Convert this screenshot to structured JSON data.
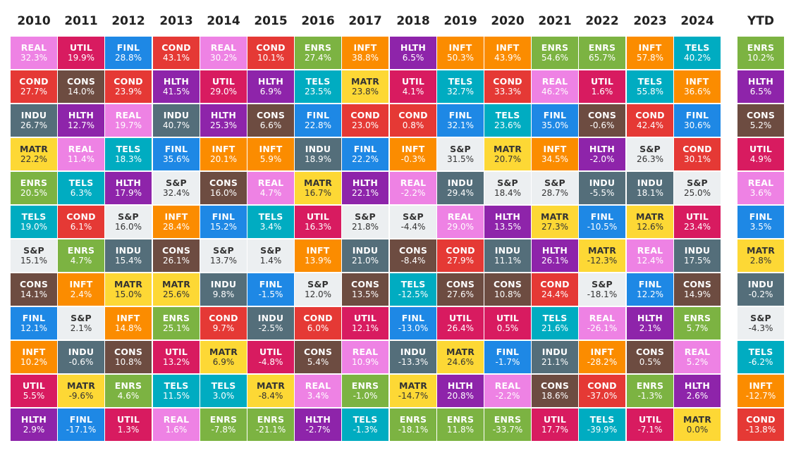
{
  "chart_data": {
    "type": "table",
    "columns": [
      "2010",
      "2011",
      "2012",
      "2013",
      "2014",
      "2015",
      "2016",
      "2017",
      "2018",
      "2019",
      "2020",
      "2021",
      "2022",
      "2023",
      "2024",
      "YTD"
    ],
    "colors": {
      "REAL": "#ee82e4",
      "UTIL": "#d81b60",
      "FINL": "#1e88e5",
      "COND": "#e53935",
      "ENRS": "#7cb342",
      "INFT": "#fb8c00",
      "HLTH": "#8e24aa",
      "TELS": "#00acc1",
      "CONS": "#6d4c41",
      "MATR": "#fdd835",
      "INDU": "#546e7a",
      "S&P": "#eceff1"
    },
    "data": [
      [
        [
          "REAL",
          "32.3%"
        ],
        [
          "COND",
          "27.7%"
        ],
        [
          "INDU",
          "26.7%"
        ],
        [
          "MATR",
          "22.2%"
        ],
        [
          "ENRS",
          "20.5%"
        ],
        [
          "TELS",
          "19.0%"
        ],
        [
          "S&P",
          "15.1%"
        ],
        [
          "CONS",
          "14.1%"
        ],
        [
          "FINL",
          "12.1%"
        ],
        [
          "INFT",
          "10.2%"
        ],
        [
          "UTIL",
          "5.5%"
        ],
        [
          "HLTH",
          "2.9%"
        ]
      ],
      [
        [
          "UTIL",
          "19.9%"
        ],
        [
          "CONS",
          "14.0%"
        ],
        [
          "HLTH",
          "12.7%"
        ],
        [
          "REAL",
          "11.4%"
        ],
        [
          "TELS",
          "6.3%"
        ],
        [
          "COND",
          "6.1%"
        ],
        [
          "ENRS",
          "4.7%"
        ],
        [
          "INFT",
          "2.4%"
        ],
        [
          "S&P",
          "2.1%"
        ],
        [
          "INDU",
          "-0.6%"
        ],
        [
          "MATR",
          "-9.6%"
        ],
        [
          "FINL",
          "-17.1%"
        ]
      ],
      [
        [
          "FINL",
          "28.8%"
        ],
        [
          "COND",
          "23.9%"
        ],
        [
          "REAL",
          "19.7%"
        ],
        [
          "TELS",
          "18.3%"
        ],
        [
          "HLTH",
          "17.9%"
        ],
        [
          "S&P",
          "16.0%"
        ],
        [
          "INDU",
          "15.4%"
        ],
        [
          "MATR",
          "15.0%"
        ],
        [
          "INFT",
          "14.8%"
        ],
        [
          "CONS",
          "10.8%"
        ],
        [
          "ENRS",
          "4.6%"
        ],
        [
          "UTIL",
          "1.3%"
        ]
      ],
      [
        [
          "COND",
          "43.1%"
        ],
        [
          "HLTH",
          "41.5%"
        ],
        [
          "INDU",
          "40.7%"
        ],
        [
          "FINL",
          "35.6%"
        ],
        [
          "S&P",
          "32.4%"
        ],
        [
          "INFT",
          "28.4%"
        ],
        [
          "CONS",
          "26.1%"
        ],
        [
          "MATR",
          "25.6%"
        ],
        [
          "ENRS",
          "25.1%"
        ],
        [
          "UTIL",
          "13.2%"
        ],
        [
          "TELS",
          "11.5%"
        ],
        [
          "REAL",
          "1.6%"
        ]
      ],
      [
        [
          "REAL",
          "30.2%"
        ],
        [
          "UTIL",
          "29.0%"
        ],
        [
          "HLTH",
          "25.3%"
        ],
        [
          "INFT",
          "20.1%"
        ],
        [
          "CONS",
          "16.0%"
        ],
        [
          "FINL",
          "15.2%"
        ],
        [
          "S&P",
          "13.7%"
        ],
        [
          "INDU",
          "9.8%"
        ],
        [
          "COND",
          "9.7%"
        ],
        [
          "MATR",
          "6.9%"
        ],
        [
          "TELS",
          "3.0%"
        ],
        [
          "ENRS",
          "-7.8%"
        ]
      ],
      [
        [
          "COND",
          "10.1%"
        ],
        [
          "HLTH",
          "6.9%"
        ],
        [
          "CONS",
          "6.6%"
        ],
        [
          "INFT",
          "5.9%"
        ],
        [
          "REAL",
          "4.7%"
        ],
        [
          "TELS",
          "3.4%"
        ],
        [
          "S&P",
          "1.4%"
        ],
        [
          "FINL",
          "-1.5%"
        ],
        [
          "INDU",
          "-2.5%"
        ],
        [
          "UTIL",
          "-4.8%"
        ],
        [
          "MATR",
          "-8.4%"
        ],
        [
          "ENRS",
          "-21.1%"
        ]
      ],
      [
        [
          "ENRS",
          "27.4%"
        ],
        [
          "TELS",
          "23.5%"
        ],
        [
          "FINL",
          "22.8%"
        ],
        [
          "INDU",
          "18.9%"
        ],
        [
          "MATR",
          "16.7%"
        ],
        [
          "UTIL",
          "16.3%"
        ],
        [
          "INFT",
          "13.9%"
        ],
        [
          "S&P",
          "12.0%"
        ],
        [
          "COND",
          "6.0%"
        ],
        [
          "CONS",
          "5.4%"
        ],
        [
          "REAL",
          "3.4%"
        ],
        [
          "HLTH",
          "-2.7%"
        ]
      ],
      [
        [
          "INFT",
          "38.8%"
        ],
        [
          "MATR",
          "23.8%"
        ],
        [
          "COND",
          "23.0%"
        ],
        [
          "FINL",
          "22.2%"
        ],
        [
          "HLTH",
          "22.1%"
        ],
        [
          "S&P",
          "21.8%"
        ],
        [
          "INDU",
          "21.0%"
        ],
        [
          "CONS",
          "13.5%"
        ],
        [
          "UTIL",
          "12.1%"
        ],
        [
          "REAL",
          "10.9%"
        ],
        [
          "ENRS",
          "-1.0%"
        ],
        [
          "TELS",
          "-1.3%"
        ]
      ],
      [
        [
          "HLTH",
          "6.5%"
        ],
        [
          "UTIL",
          "4.1%"
        ],
        [
          "COND",
          "0.8%"
        ],
        [
          "INFT",
          "-0.3%"
        ],
        [
          "REAL",
          "-2.2%"
        ],
        [
          "S&P",
          "-4.4%"
        ],
        [
          "CONS",
          "-8.4%"
        ],
        [
          "TELS",
          "-12.5%"
        ],
        [
          "FINL",
          "-13.0%"
        ],
        [
          "INDU",
          "-13.3%"
        ],
        [
          "MATR",
          "-14.7%"
        ],
        [
          "ENRS",
          "-18.1%"
        ]
      ],
      [
        [
          "INFT",
          "50.3%"
        ],
        [
          "TELS",
          "32.7%"
        ],
        [
          "FINL",
          "32.1%"
        ],
        [
          "S&P",
          "31.5%"
        ],
        [
          "INDU",
          "29.4%"
        ],
        [
          "REAL",
          "29.0%"
        ],
        [
          "COND",
          "27.9%"
        ],
        [
          "CONS",
          "27.6%"
        ],
        [
          "UTIL",
          "26.4%"
        ],
        [
          "MATR",
          "24.6%"
        ],
        [
          "HLTH",
          "20.8%"
        ],
        [
          "ENRS",
          "11.8%"
        ]
      ],
      [
        [
          "INFT",
          "43.9%"
        ],
        [
          "COND",
          "33.3%"
        ],
        [
          "TELS",
          "23.6%"
        ],
        [
          "MATR",
          "20.7%"
        ],
        [
          "S&P",
          "18.4%"
        ],
        [
          "HLTH",
          "13.5%"
        ],
        [
          "INDU",
          "11.1%"
        ],
        [
          "CONS",
          "10.8%"
        ],
        [
          "UTIL",
          "0.5%"
        ],
        [
          "FINL",
          "-1.7%"
        ],
        [
          "REAL",
          "-2.2%"
        ],
        [
          "ENRS",
          "-33.7%"
        ]
      ],
      [
        [
          "ENRS",
          "54.6%"
        ],
        [
          "REAL",
          "46.2%"
        ],
        [
          "FINL",
          "35.0%"
        ],
        [
          "INFT",
          "34.5%"
        ],
        [
          "S&P",
          "28.7%"
        ],
        [
          "MATR",
          "27.3%"
        ],
        [
          "HLTH",
          "26.1%"
        ],
        [
          "COND",
          "24.4%"
        ],
        [
          "TELS",
          "21.6%"
        ],
        [
          "INDU",
          "21.1%"
        ],
        [
          "CONS",
          "18.6%"
        ],
        [
          "UTIL",
          "17.7%"
        ]
      ],
      [
        [
          "ENRS",
          "65.7%"
        ],
        [
          "UTIL",
          "1.6%"
        ],
        [
          "CONS",
          "-0.6%"
        ],
        [
          "HLTH",
          "-2.0%"
        ],
        [
          "INDU",
          "-5.5%"
        ],
        [
          "FINL",
          "-10.5%"
        ],
        [
          "MATR",
          "-12.3%"
        ],
        [
          "S&P",
          "-18.1%"
        ],
        [
          "REAL",
          "-26.1%"
        ],
        [
          "INFT",
          "-28.2%"
        ],
        [
          "COND",
          "-37.0%"
        ],
        [
          "TELS",
          "-39.9%"
        ]
      ],
      [
        [
          "INFT",
          "57.8%"
        ],
        [
          "TELS",
          "55.8%"
        ],
        [
          "COND",
          "42.4%"
        ],
        [
          "S&P",
          "26.3%"
        ],
        [
          "INDU",
          "18.1%"
        ],
        [
          "MATR",
          "12.6%"
        ],
        [
          "REAL",
          "12.4%"
        ],
        [
          "FINL",
          "12.2%"
        ],
        [
          "HLTH",
          "2.1%"
        ],
        [
          "CONS",
          "0.5%"
        ],
        [
          "ENRS",
          "-1.3%"
        ],
        [
          "UTIL",
          "-7.1%"
        ]
      ],
      [
        [
          "TELS",
          "40.2%"
        ],
        [
          "INFT",
          "36.6%"
        ],
        [
          "FINL",
          "30.6%"
        ],
        [
          "COND",
          "30.1%"
        ],
        [
          "S&P",
          "25.0%"
        ],
        [
          "UTIL",
          "23.4%"
        ],
        [
          "INDU",
          "17.5%"
        ],
        [
          "CONS",
          "14.9%"
        ],
        [
          "ENRS",
          "5.7%"
        ],
        [
          "REAL",
          "5.2%"
        ],
        [
          "HLTH",
          "2.6%"
        ],
        [
          "MATR",
          "0.0%"
        ]
      ],
      [
        [
          "ENRS",
          "10.2%"
        ],
        [
          "HLTH",
          "6.5%"
        ],
        [
          "CONS",
          "5.2%"
        ],
        [
          "UTIL",
          "4.9%"
        ],
        [
          "REAL",
          "3.6%"
        ],
        [
          "FINL",
          "3.5%"
        ],
        [
          "MATR",
          "2.8%"
        ],
        [
          "INDU",
          "-0.2%"
        ],
        [
          "S&P",
          "-4.3%"
        ],
        [
          "TELS",
          "-6.2%"
        ],
        [
          "INFT",
          "-12.7%"
        ],
        [
          "COND",
          "-13.8%"
        ]
      ]
    ]
  }
}
